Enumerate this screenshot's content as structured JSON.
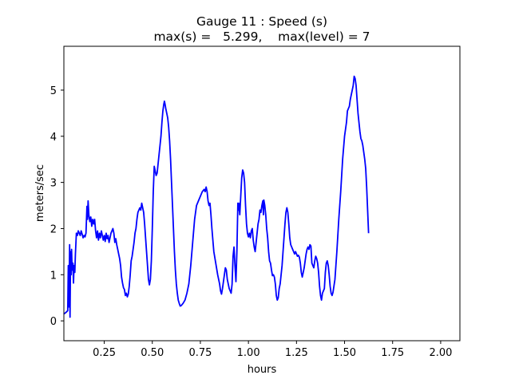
{
  "chart_data": {
    "type": "line",
    "title": "Gauge 11 : Speed (s)",
    "subtitle": "max(s) =   5.299,    max(level) = 7",
    "xlabel": "hours",
    "ylabel": "meters/sec",
    "xlim": [
      0.04,
      2.1
    ],
    "ylim": [
      -0.43,
      5.95
    ],
    "xticks": [
      {
        "value": 0.25,
        "label": "0.25"
      },
      {
        "value": 0.5,
        "label": "0.50"
      },
      {
        "value": 0.75,
        "label": "0.75"
      },
      {
        "value": 1.0,
        "label": "1.00"
      },
      {
        "value": 1.25,
        "label": "1.25"
      },
      {
        "value": 1.5,
        "label": "1.50"
      },
      {
        "value": 1.75,
        "label": "1.75"
      },
      {
        "value": 2.0,
        "label": "2.00"
      }
    ],
    "yticks": [
      {
        "value": 0,
        "label": "0"
      },
      {
        "value": 1,
        "label": "1"
      },
      {
        "value": 2,
        "label": "2"
      },
      {
        "value": 3,
        "label": "3"
      },
      {
        "value": 4,
        "label": "4"
      },
      {
        "value": 5,
        "label": "5"
      }
    ],
    "grid": false,
    "series": [
      {
        "color": "#0000ff",
        "points": [
          [
            0.04,
            0.15
          ],
          [
            0.05,
            0.18
          ],
          [
            0.055,
            0.2
          ],
          [
            0.06,
            0.22
          ],
          [
            0.063,
            1.2
          ],
          [
            0.066,
            0.3
          ],
          [
            0.07,
            1.65
          ],
          [
            0.072,
            0.08
          ],
          [
            0.075,
            1.5
          ],
          [
            0.078,
            1.0
          ],
          [
            0.08,
            1.55
          ],
          [
            0.083,
            1.1
          ],
          [
            0.087,
            1.25
          ],
          [
            0.09,
            0.82
          ],
          [
            0.093,
            1.2
          ],
          [
            0.097,
            1.05
          ],
          [
            0.1,
            1.45
          ],
          [
            0.105,
            1.9
          ],
          [
            0.11,
            1.85
          ],
          [
            0.115,
            1.95
          ],
          [
            0.12,
            1.9
          ],
          [
            0.125,
            1.85
          ],
          [
            0.13,
            1.95
          ],
          [
            0.135,
            1.88
          ],
          [
            0.14,
            1.8
          ],
          [
            0.145,
            1.85
          ],
          [
            0.15,
            1.82
          ],
          [
            0.155,
            1.9
          ],
          [
            0.16,
            2.48
          ],
          [
            0.163,
            2.2
          ],
          [
            0.166,
            2.6
          ],
          [
            0.17,
            2.3
          ],
          [
            0.175,
            2.15
          ],
          [
            0.18,
            2.25
          ],
          [
            0.185,
            2.05
          ],
          [
            0.19,
            2.2
          ],
          [
            0.195,
            2.1
          ],
          [
            0.2,
            2.2
          ],
          [
            0.205,
            1.95
          ],
          [
            0.21,
            1.8
          ],
          [
            0.215,
            1.95
          ],
          [
            0.22,
            1.75
          ],
          [
            0.225,
            1.9
          ],
          [
            0.23,
            1.8
          ],
          [
            0.235,
            1.95
          ],
          [
            0.24,
            1.85
          ],
          [
            0.245,
            1.75
          ],
          [
            0.25,
            1.85
          ],
          [
            0.255,
            1.72
          ],
          [
            0.26,
            1.9
          ],
          [
            0.265,
            1.78
          ],
          [
            0.27,
            1.85
          ],
          [
            0.275,
            1.7
          ],
          [
            0.28,
            1.8
          ],
          [
            0.285,
            1.9
          ],
          [
            0.29,
            1.95
          ],
          [
            0.295,
            2.0
          ],
          [
            0.3,
            1.9
          ],
          [
            0.305,
            1.7
          ],
          [
            0.31,
            1.78
          ],
          [
            0.315,
            1.65
          ],
          [
            0.32,
            1.55
          ],
          [
            0.325,
            1.45
          ],
          [
            0.33,
            1.35
          ],
          [
            0.335,
            1.2
          ],
          [
            0.34,
            0.95
          ],
          [
            0.345,
            0.82
          ],
          [
            0.35,
            0.72
          ],
          [
            0.355,
            0.68
          ],
          [
            0.36,
            0.55
          ],
          [
            0.365,
            0.6
          ],
          [
            0.37,
            0.52
          ],
          [
            0.375,
            0.58
          ],
          [
            0.38,
            0.75
          ],
          [
            0.385,
            1.0
          ],
          [
            0.39,
            1.3
          ],
          [
            0.395,
            1.4
          ],
          [
            0.4,
            1.55
          ],
          [
            0.405,
            1.7
          ],
          [
            0.41,
            1.9
          ],
          [
            0.415,
            2.0
          ],
          [
            0.42,
            2.2
          ],
          [
            0.425,
            2.35
          ],
          [
            0.43,
            2.4
          ],
          [
            0.435,
            2.45
          ],
          [
            0.44,
            2.4
          ],
          [
            0.445,
            2.55
          ],
          [
            0.45,
            2.45
          ],
          [
            0.455,
            2.35
          ],
          [
            0.46,
            2.1
          ],
          [
            0.465,
            1.8
          ],
          [
            0.47,
            1.5
          ],
          [
            0.475,
            1.2
          ],
          [
            0.48,
            0.9
          ],
          [
            0.485,
            0.78
          ],
          [
            0.49,
            0.9
          ],
          [
            0.495,
            1.3
          ],
          [
            0.5,
            2.0
          ],
          [
            0.505,
            2.8
          ],
          [
            0.51,
            3.35
          ],
          [
            0.515,
            3.25
          ],
          [
            0.52,
            3.15
          ],
          [
            0.525,
            3.2
          ],
          [
            0.53,
            3.4
          ],
          [
            0.535,
            3.6
          ],
          [
            0.54,
            3.8
          ],
          [
            0.545,
            4.0
          ],
          [
            0.55,
            4.3
          ],
          [
            0.555,
            4.55
          ],
          [
            0.56,
            4.7
          ],
          [
            0.563,
            4.76
          ],
          [
            0.566,
            4.7
          ],
          [
            0.57,
            4.6
          ],
          [
            0.575,
            4.5
          ],
          [
            0.58,
            4.4
          ],
          [
            0.585,
            4.2
          ],
          [
            0.59,
            3.9
          ],
          [
            0.595,
            3.5
          ],
          [
            0.6,
            3.0
          ],
          [
            0.605,
            2.5
          ],
          [
            0.61,
            2.0
          ],
          [
            0.615,
            1.5
          ],
          [
            0.62,
            1.1
          ],
          [
            0.625,
            0.8
          ],
          [
            0.63,
            0.6
          ],
          [
            0.635,
            0.45
          ],
          [
            0.64,
            0.38
          ],
          [
            0.645,
            0.32
          ],
          [
            0.65,
            0.33
          ],
          [
            0.66,
            0.38
          ],
          [
            0.67,
            0.45
          ],
          [
            0.68,
            0.6
          ],
          [
            0.69,
            0.8
          ],
          [
            0.7,
            1.2
          ],
          [
            0.71,
            1.7
          ],
          [
            0.72,
            2.2
          ],
          [
            0.73,
            2.5
          ],
          [
            0.74,
            2.6
          ],
          [
            0.75,
            2.7
          ],
          [
            0.76,
            2.8
          ],
          [
            0.77,
            2.85
          ],
          [
            0.775,
            2.8
          ],
          [
            0.78,
            2.9
          ],
          [
            0.785,
            2.8
          ],
          [
            0.79,
            2.6
          ],
          [
            0.795,
            2.5
          ],
          [
            0.8,
            2.55
          ],
          [
            0.805,
            2.3
          ],
          [
            0.81,
            2.0
          ],
          [
            0.815,
            1.75
          ],
          [
            0.82,
            1.5
          ],
          [
            0.83,
            1.25
          ],
          [
            0.84,
            1.0
          ],
          [
            0.85,
            0.8
          ],
          [
            0.855,
            0.65
          ],
          [
            0.86,
            0.58
          ],
          [
            0.865,
            0.7
          ],
          [
            0.87,
            0.85
          ],
          [
            0.875,
            1.0
          ],
          [
            0.88,
            1.15
          ],
          [
            0.885,
            1.1
          ],
          [
            0.89,
            0.9
          ],
          [
            0.9,
            0.7
          ],
          [
            0.91,
            0.6
          ],
          [
            0.915,
            0.8
          ],
          [
            0.92,
            1.4
          ],
          [
            0.925,
            1.6
          ],
          [
            0.93,
            1.2
          ],
          [
            0.935,
            0.85
          ],
          [
            0.94,
            1.5
          ],
          [
            0.945,
            2.55
          ],
          [
            0.948,
            2.4
          ],
          [
            0.95,
            2.55
          ],
          [
            0.955,
            2.3
          ],
          [
            0.96,
            2.7
          ],
          [
            0.965,
            3.1
          ],
          [
            0.97,
            3.27
          ],
          [
            0.975,
            3.2
          ],
          [
            0.98,
            3.0
          ],
          [
            0.985,
            2.5
          ],
          [
            0.99,
            2.1
          ],
          [
            0.995,
            1.9
          ],
          [
            1.0,
            1.82
          ],
          [
            1.005,
            1.9
          ],
          [
            1.01,
            1.8
          ],
          [
            1.015,
            1.95
          ],
          [
            1.02,
            2.0
          ],
          [
            1.025,
            1.75
          ],
          [
            1.03,
            1.6
          ],
          [
            1.035,
            1.5
          ],
          [
            1.04,
            1.7
          ],
          [
            1.045,
            1.9
          ],
          [
            1.05,
            2.1
          ],
          [
            1.055,
            2.2
          ],
          [
            1.06,
            2.4
          ],
          [
            1.065,
            2.35
          ],
          [
            1.07,
            2.5
          ],
          [
            1.075,
            2.6
          ],
          [
            1.078,
            2.3
          ],
          [
            1.08,
            2.62
          ],
          [
            1.085,
            2.5
          ],
          [
            1.09,
            2.3
          ],
          [
            1.095,
            2.0
          ],
          [
            1.1,
            1.8
          ],
          [
            1.105,
            1.5
          ],
          [
            1.11,
            1.3
          ],
          [
            1.115,
            1.25
          ],
          [
            1.12,
            1.1
          ],
          [
            1.125,
            0.98
          ],
          [
            1.13,
            1.0
          ],
          [
            1.135,
            0.95
          ],
          [
            1.14,
            0.8
          ],
          [
            1.145,
            0.55
          ],
          [
            1.15,
            0.45
          ],
          [
            1.155,
            0.5
          ],
          [
            1.16,
            0.7
          ],
          [
            1.165,
            0.8
          ],
          [
            1.17,
            1.0
          ],
          [
            1.175,
            1.2
          ],
          [
            1.18,
            1.5
          ],
          [
            1.185,
            1.8
          ],
          [
            1.19,
            2.1
          ],
          [
            1.195,
            2.35
          ],
          [
            1.2,
            2.45
          ],
          [
            1.205,
            2.35
          ],
          [
            1.21,
            2.1
          ],
          [
            1.215,
            1.8
          ],
          [
            1.22,
            1.65
          ],
          [
            1.225,
            1.6
          ],
          [
            1.23,
            1.55
          ],
          [
            1.235,
            1.5
          ],
          [
            1.24,
            1.45
          ],
          [
            1.245,
            1.5
          ],
          [
            1.25,
            1.45
          ],
          [
            1.255,
            1.4
          ],
          [
            1.26,
            1.42
          ],
          [
            1.265,
            1.38
          ],
          [
            1.27,
            1.25
          ],
          [
            1.275,
            1.05
          ],
          [
            1.28,
            0.95
          ],
          [
            1.285,
            1.05
          ],
          [
            1.29,
            1.15
          ],
          [
            1.295,
            1.3
          ],
          [
            1.3,
            1.45
          ],
          [
            1.305,
            1.55
          ],
          [
            1.31,
            1.6
          ],
          [
            1.315,
            1.55
          ],
          [
            1.32,
            1.65
          ],
          [
            1.325,
            1.62
          ],
          [
            1.33,
            1.25
          ],
          [
            1.335,
            1.2
          ],
          [
            1.34,
            1.15
          ],
          [
            1.345,
            1.3
          ],
          [
            1.35,
            1.4
          ],
          [
            1.355,
            1.35
          ],
          [
            1.36,
            1.25
          ],
          [
            1.365,
            1.05
          ],
          [
            1.37,
            0.75
          ],
          [
            1.375,
            0.55
          ],
          [
            1.38,
            0.45
          ],
          [
            1.385,
            0.6
          ],
          [
            1.39,
            0.65
          ],
          [
            1.395,
            0.7
          ],
          [
            1.4,
            1.05
          ],
          [
            1.405,
            1.25
          ],
          [
            1.41,
            1.3
          ],
          [
            1.415,
            1.2
          ],
          [
            1.42,
            1.0
          ],
          [
            1.425,
            0.75
          ],
          [
            1.43,
            0.6
          ],
          [
            1.435,
            0.55
          ],
          [
            1.44,
            0.62
          ],
          [
            1.45,
            0.9
          ],
          [
            1.46,
            1.5
          ],
          [
            1.47,
            2.2
          ],
          [
            1.48,
            2.8
          ],
          [
            1.49,
            3.5
          ],
          [
            1.5,
            4.0
          ],
          [
            1.51,
            4.3
          ],
          [
            1.515,
            4.55
          ],
          [
            1.52,
            4.6
          ],
          [
            1.525,
            4.65
          ],
          [
            1.53,
            4.8
          ],
          [
            1.535,
            4.9
          ],
          [
            1.54,
            5.0
          ],
          [
            1.545,
            5.1
          ],
          [
            1.55,
            5.3
          ],
          [
            1.555,
            5.25
          ],
          [
            1.56,
            5.1
          ],
          [
            1.565,
            4.8
          ],
          [
            1.57,
            4.5
          ],
          [
            1.575,
            4.3
          ],
          [
            1.58,
            4.1
          ],
          [
            1.585,
            3.95
          ],
          [
            1.59,
            3.9
          ],
          [
            1.595,
            3.8
          ],
          [
            1.6,
            3.65
          ],
          [
            1.605,
            3.5
          ],
          [
            1.61,
            3.3
          ],
          [
            1.615,
            2.9
          ],
          [
            1.62,
            2.4
          ],
          [
            1.625,
            1.9
          ]
        ]
      }
    ]
  }
}
